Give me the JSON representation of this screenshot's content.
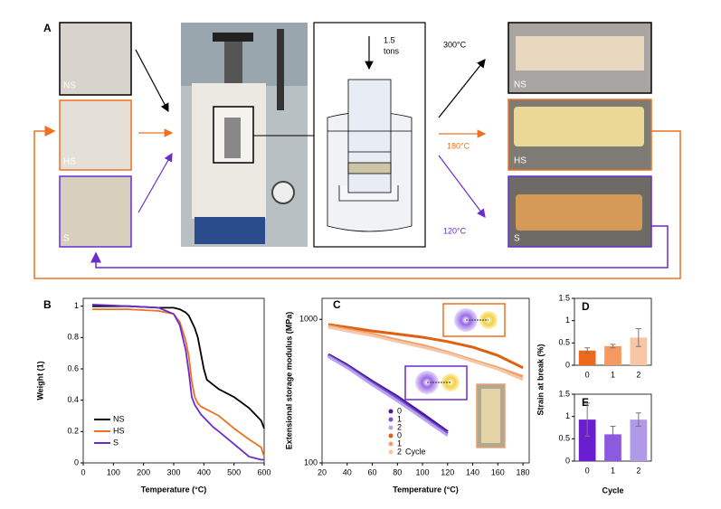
{
  "panel_a": {
    "label": "A",
    "inputs": [
      "NS",
      "HS",
      "S"
    ],
    "force_lines": [
      "1.5",
      "tons"
    ],
    "temperatures": [
      "300°C",
      "180°C",
      "120°C"
    ],
    "outputs": [
      "NS",
      "HS",
      "S"
    ]
  },
  "strain_axis_label": "Strain at break (%)",
  "chart_data": [
    {
      "type": "line",
      "label": "B",
      "xlabel": "Temperature (°C)",
      "ylabel": "Weight (1)",
      "x": [
        30,
        150,
        250,
        300,
        320,
        340,
        350,
        360,
        370,
        380,
        390,
        400,
        410,
        430,
        450,
        500,
        550,
        590,
        600
      ],
      "series": [
        {
          "name": "NS",
          "color": "#000000",
          "values": [
            1.0,
            1.0,
            0.99,
            0.99,
            0.98,
            0.96,
            0.94,
            0.9,
            0.86,
            0.8,
            0.7,
            0.6,
            0.53,
            0.5,
            0.47,
            0.42,
            0.35,
            0.27,
            0.22
          ]
        },
        {
          "name": "HS",
          "color": "#ee7020",
          "values": [
            0.98,
            0.98,
            0.97,
            0.95,
            0.9,
            0.78,
            0.68,
            0.52,
            0.42,
            0.38,
            0.36,
            0.35,
            0.34,
            0.32,
            0.3,
            0.22,
            0.15,
            0.1,
            0.04
          ]
        },
        {
          "name": "S",
          "color": "#6a2ccc",
          "values": [
            1.01,
            1.0,
            0.99,
            0.95,
            0.88,
            0.72,
            0.58,
            0.42,
            0.37,
            0.34,
            0.31,
            0.29,
            0.27,
            0.23,
            0.2,
            0.12,
            0.04,
            0.02,
            0.02
          ]
        }
      ],
      "xlim": [
        0,
        600
      ],
      "xticks": [
        0,
        100,
        200,
        300,
        400,
        500,
        600
      ],
      "ylim": [
        0,
        1.05
      ],
      "yticks": [
        0,
        0.2,
        0.4,
        0.6,
        0.8,
        1
      ],
      "legend": "lower left"
    },
    {
      "type": "line",
      "label": "C",
      "xlabel": "Temperature (°C)",
      "ylabel": "Extensional storage modulus (MPa)",
      "log_y": true,
      "x": [
        25,
        40,
        60,
        80,
        100,
        120,
        140,
        160,
        180
      ],
      "series": [
        {
          "name": "0",
          "color": "#4a1a9a",
          "values": [
            570,
            480,
            370,
            290,
            220,
            165,
            null,
            null,
            null
          ]
        },
        {
          "name": "1",
          "color": "#7a50d8",
          "values": [
            560,
            470,
            360,
            280,
            210,
            160,
            null,
            null,
            null
          ]
        },
        {
          "name": "2",
          "color": "#b8a4ec",
          "values": [
            550,
            460,
            350,
            270,
            205,
            155,
            null,
            null,
            null
          ]
        },
        {
          "name": "0",
          "color": "#e06010",
          "values": [
            920,
            880,
            830,
            790,
            750,
            700,
            640,
            560,
            460
          ]
        },
        {
          "name": "1",
          "color": "#f0a070",
          "values": [
            900,
            850,
            790,
            720,
            660,
            590,
            520,
            460,
            400
          ]
        },
        {
          "name": "2",
          "color": "#f6c8a8",
          "values": [
            880,
            830,
            770,
            700,
            640,
            580,
            510,
            450,
            380
          ]
        }
      ],
      "legend_title": "Cycle",
      "xlim": [
        20,
        185
      ],
      "xticks": [
        20,
        40,
        60,
        80,
        100,
        120,
        140,
        160,
        180
      ],
      "ylim": [
        100,
        1400
      ],
      "yticks": [
        100,
        1000
      ],
      "legend": "lower left"
    },
    {
      "type": "bar",
      "label": "D",
      "categories": [
        "0",
        "1",
        "2"
      ],
      "values": [
        0.33,
        0.43,
        0.62
      ],
      "errors": [
        0.06,
        0.04,
        0.2
      ],
      "colors": [
        "#ee6a1a",
        "#f49a60",
        "#f8c6a4"
      ],
      "ylim": [
        0,
        1.5
      ],
      "yticks": [
        0,
        0.5,
        1,
        1.5
      ]
    },
    {
      "type": "bar",
      "label": "E",
      "xlabel": "Cycle",
      "categories": [
        "0",
        "1",
        "2"
      ],
      "values": [
        0.93,
        0.6,
        0.93
      ],
      "errors": [
        0.37,
        0.18,
        0.15
      ],
      "colors": [
        "#6a1ed0",
        "#8c5ae0",
        "#b09ae8"
      ],
      "ylim": [
        0,
        1.5
      ],
      "yticks": [
        0,
        0.5,
        1,
        1.5
      ]
    }
  ]
}
